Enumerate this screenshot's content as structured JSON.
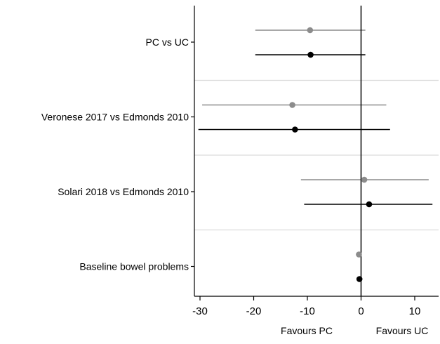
{
  "chart_data": {
    "type": "forest",
    "title": "",
    "xlabel": "",
    "ylabel": "",
    "xlim": [
      -32,
      14
    ],
    "x_ticks": [
      -30,
      -20,
      -10,
      0,
      10
    ],
    "x_tick_labels": [
      "-30",
      "-20",
      "-10",
      "0",
      "10"
    ],
    "annotations": {
      "left": "Favours PC",
      "right": "Favours UC"
    },
    "grid": false,
    "colors": {
      "gray": "#8c8c8c",
      "black": "#000000",
      "separator": "#dcdcdc"
    },
    "groups": [
      {
        "label": "PC vs UC",
        "estimates": [
          {
            "color": "gray",
            "estimate": -9.5,
            "lower": -19.7,
            "upper": 0.8
          },
          {
            "color": "black",
            "estimate": -9.4,
            "lower": -19.7,
            "upper": 0.8
          }
        ]
      },
      {
        "label": "Veronese 2017 vs Edmonds 2010",
        "estimates": [
          {
            "color": "gray",
            "estimate": -12.8,
            "lower": -29.6,
            "upper": 4.7
          },
          {
            "color": "black",
            "estimate": -12.3,
            "lower": -30.3,
            "upper": 5.4
          }
        ]
      },
      {
        "label": "Solari 2018 vs Edmonds 2010",
        "estimates": [
          {
            "color": "gray",
            "estimate": 0.6,
            "lower": -11.2,
            "upper": 12.6
          },
          {
            "color": "black",
            "estimate": 1.5,
            "lower": -10.6,
            "upper": 13.3
          }
        ]
      },
      {
        "label": "Baseline bowel problems",
        "estimates": [
          {
            "color": "gray",
            "estimate": -0.4,
            "lower": -0.4,
            "upper": -0.4
          },
          {
            "color": "black",
            "estimate": -0.3,
            "lower": -0.3,
            "upper": -0.3
          }
        ]
      }
    ]
  }
}
